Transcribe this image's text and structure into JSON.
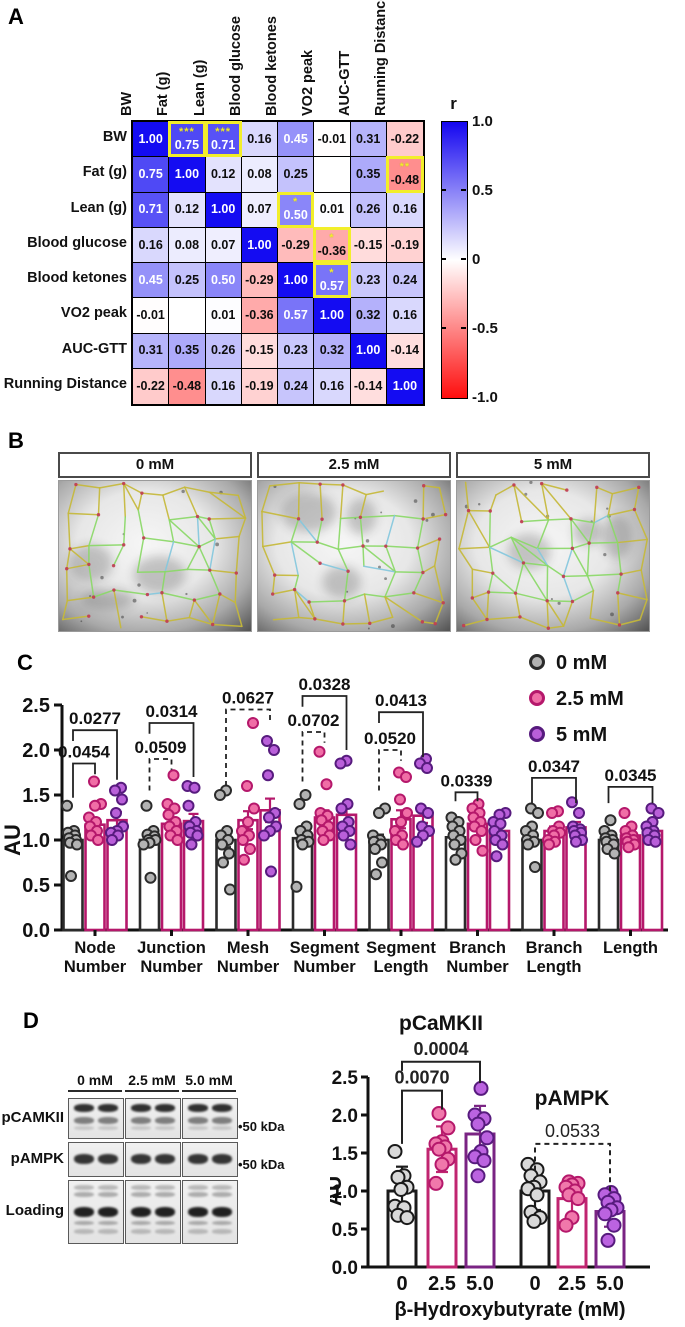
{
  "figure": {
    "panel_labels": {
      "a": "A",
      "b": "B",
      "c": "C",
      "d": "D"
    }
  },
  "panel_b": {
    "image_labels": [
      "0 mM",
      "2.5 mM",
      "5 mM"
    ]
  },
  "panel_d_blot": {
    "col_headers": [
      "0 mM",
      "2.5 mM",
      "5.0 mM"
    ],
    "row_labels": [
      "pCAMKII",
      "pAMPK",
      "Loading"
    ],
    "markers": [
      "•50 kDa",
      "•50 kDa",
      ""
    ]
  },
  "chart_data": [
    {
      "panel": "A",
      "type": "heatmap",
      "colorbar_title": "r",
      "colorbar_ticks": [
        "1.0",
        "0.5",
        "0",
        "-0.5",
        "-1.0"
      ],
      "colorbar_range": [
        -1,
        1
      ],
      "variables": [
        "BW",
        "Fat (g)",
        "Lean (g)",
        "Blood glucose",
        "Blood ketones",
        "VO2 peak",
        "AUC-GTT",
        "Running Distance"
      ],
      "matrix": [
        [
          1.0,
          0.75,
          0.71,
          0.16,
          0.45,
          -0.01,
          0.31,
          -0.22
        ],
        [
          0.75,
          1.0,
          0.12,
          0.08,
          0.25,
          null,
          0.35,
          -0.48
        ],
        [
          0.71,
          0.12,
          1.0,
          0.07,
          0.5,
          0.01,
          0.26,
          0.16
        ],
        [
          0.16,
          0.08,
          0.07,
          1.0,
          -0.29,
          -0.36,
          -0.15,
          -0.19
        ],
        [
          0.45,
          0.25,
          0.5,
          -0.29,
          1.0,
          0.57,
          0.23,
          0.24
        ],
        [
          -0.01,
          null,
          0.01,
          -0.36,
          0.57,
          1.0,
          0.32,
          0.16
        ],
        [
          0.31,
          0.35,
          0.26,
          -0.15,
          0.23,
          0.32,
          1.0,
          -0.14
        ],
        [
          -0.22,
          -0.48,
          0.16,
          -0.19,
          0.24,
          0.16,
          -0.14,
          1.0
        ]
      ],
      "significant_cells": [
        {
          "row": 0,
          "col": 1,
          "stars": "***"
        },
        {
          "row": 0,
          "col": 2,
          "stars": "***"
        },
        {
          "row": 1,
          "col": 7,
          "stars": "**"
        },
        {
          "row": 2,
          "col": 4,
          "stars": "*"
        },
        {
          "row": 3,
          "col": 5,
          "stars": "*"
        },
        {
          "row": 4,
          "col": 5,
          "stars": "*"
        }
      ]
    },
    {
      "panel": "C",
      "type": "bar",
      "ylabel": "AU",
      "ylim": [
        0,
        2.5
      ],
      "yticks": [
        "0.0",
        "0.5",
        "1.0",
        "1.5",
        "2.0",
        "2.5"
      ],
      "categories": [
        [
          "Node",
          "Number"
        ],
        [
          "Junction",
          "Number"
        ],
        [
          "Mesh",
          "Number"
        ],
        [
          "Segment",
          "Number"
        ],
        [
          "Segment",
          "Length"
        ],
        [
          "Branch",
          "Number"
        ],
        [
          "Branch",
          "Length"
        ],
        [
          "Length"
        ]
      ],
      "legend": [
        "0 mM",
        "2.5 mM",
        "5 mM"
      ],
      "colors": {
        "outlines": [
          "#2b2b2b",
          "#b5186b",
          "#b5186b"
        ],
        "dot_fills": [
          "#b3b3b3",
          "#f06ea6",
          "#b95fd9"
        ],
        "dot_strokes": [
          "#2b2b2b",
          "#b5186b",
          "#571b7e"
        ]
      },
      "series": [
        {
          "name": "0 mM",
          "means": [
            1.0,
            1.0,
            1.0,
            1.02,
            1.0,
            1.03,
            1.0,
            1.0
          ],
          "sem": [
            0.05,
            0.05,
            0.08,
            0.05,
            0.06,
            0.05,
            0.04,
            0.03
          ],
          "points": [
            [
              1.38,
              1.1,
              1.08,
              1.05,
              1.02,
              1.0,
              0.97,
              0.95,
              0.6
            ],
            [
              1.38,
              1.1,
              1.06,
              1.04,
              1.0,
              1.0,
              0.97,
              0.95,
              0.58
            ],
            [
              1.55,
              1.5,
              1.1,
              1.05,
              1.0,
              0.95,
              0.85,
              0.75,
              0.45
            ],
            [
              1.5,
              1.4,
              1.15,
              1.1,
              1.05,
              1.0,
              0.98,
              0.95,
              0.48
            ],
            [
              1.35,
              1.3,
              1.05,
              1.0,
              0.98,
              0.95,
              0.9,
              0.75,
              0.62
            ],
            [
              1.25,
              1.2,
              1.15,
              1.1,
              1.05,
              1.0,
              0.95,
              0.85,
              0.78
            ],
            [
              1.35,
              1.3,
              1.15,
              1.1,
              1.05,
              1.0,
              0.98,
              0.95,
              0.7
            ],
            [
              1.22,
              1.1,
              1.05,
              1.02,
              1.0,
              0.98,
              0.95,
              0.9,
              0.85
            ]
          ]
        },
        {
          "name": "2.5 mM",
          "means": [
            1.17,
            1.18,
            1.22,
            1.25,
            1.23,
            1.18,
            1.1,
            1.05
          ],
          "sem": [
            0.07,
            0.07,
            0.1,
            0.08,
            0.1,
            0.05,
            0.05,
            0.04
          ],
          "points": [
            [
              1.65,
              1.4,
              1.38,
              1.25,
              1.2,
              1.15,
              1.1,
              1.05,
              1.0
            ],
            [
              1.72,
              1.4,
              1.35,
              1.28,
              1.2,
              1.15,
              1.1,
              1.05,
              1.0
            ],
            [
              2.3,
              1.6,
              1.35,
              1.2,
              1.1,
              1.05,
              1.0,
              0.9,
              0.78
            ],
            [
              1.98,
              1.62,
              1.3,
              1.27,
              1.22,
              1.15,
              1.1,
              1.05,
              1.0
            ],
            [
              1.75,
              1.7,
              1.45,
              1.3,
              1.2,
              1.1,
              1.05,
              1.0,
              0.95
            ],
            [
              1.4,
              1.35,
              1.3,
              1.25,
              1.2,
              1.15,
              1.1,
              1.0,
              0.88
            ],
            [
              1.32,
              1.3,
              1.15,
              1.1,
              1.08,
              1.05,
              1.0,
              0.98,
              0.95
            ],
            [
              1.3,
              1.15,
              1.1,
              1.05,
              1.02,
              1.0,
              0.98,
              0.95,
              0.92
            ]
          ]
        },
        {
          "name": "5 mM",
          "means": [
            1.22,
            1.21,
            1.33,
            1.28,
            1.27,
            1.1,
            1.14,
            1.1
          ],
          "sem": [
            0.09,
            0.08,
            0.13,
            0.08,
            0.08,
            0.05,
            0.06,
            0.04
          ],
          "points": [
            [
              1.58,
              1.55,
              1.45,
              1.3,
              1.15,
              1.1,
              1.08,
              1.05,
              1.0
            ],
            [
              1.6,
              1.58,
              1.38,
              1.2,
              1.15,
              1.1,
              1.08,
              1.05,
              0.95
            ],
            [
              2.1,
              2.0,
              1.72,
              1.3,
              1.25,
              1.15,
              1.1,
              1.05,
              0.65
            ],
            [
              1.88,
              1.85,
              1.4,
              1.35,
              1.2,
              1.15,
              1.1,
              1.05,
              0.95
            ],
            [
              1.9,
              1.85,
              1.8,
              1.35,
              1.3,
              1.15,
              1.1,
              1.05,
              0.98
            ],
            [
              1.3,
              1.28,
              1.2,
              1.18,
              1.1,
              1.05,
              1.0,
              0.95,
              0.82
            ],
            [
              1.42,
              1.3,
              1.15,
              1.12,
              1.1,
              1.08,
              1.05,
              1.0,
              0.98
            ],
            [
              1.35,
              1.3,
              1.2,
              1.15,
              1.1,
              1.08,
              1.05,
              1.0,
              0.98
            ]
          ]
        }
      ],
      "pvalue_brackets": [
        {
          "group": 0,
          "from": 0,
          "to": 1,
          "label": "0.0454",
          "style": "solid",
          "y": 1.85,
          "legL": 0.38,
          "legR": 0.12
        },
        {
          "group": 0,
          "from": 0,
          "to": 2,
          "label": "0.0277",
          "style": "solid",
          "y": 2.22,
          "legL": 0.12,
          "legR": 0.55
        },
        {
          "group": 1,
          "from": 0,
          "to": 1,
          "label": "0.0509",
          "style": "dashed",
          "y": 1.9,
          "legL": 0.35,
          "legR": 0.12
        },
        {
          "group": 1,
          "from": 0,
          "to": 2,
          "label": "0.0314",
          "style": "solid",
          "y": 2.3,
          "legL": 0.12,
          "legR": 0.6
        },
        {
          "group": 2,
          "from": 0,
          "to": 2,
          "label": "0.0627",
          "style": "dashed",
          "y": 2.45,
          "legL": 0.85,
          "legR": 0.12
        },
        {
          "group": 3,
          "from": 0,
          "to": 1,
          "label": "0.0702",
          "style": "dashed",
          "y": 2.2,
          "legL": 0.55,
          "legR": 0.12
        },
        {
          "group": 3,
          "from": 0,
          "to": 2,
          "label": "0.0328",
          "style": "solid",
          "y": 2.6,
          "legL": 0.12,
          "legR": 0.6
        },
        {
          "group": 4,
          "from": 0,
          "to": 1,
          "label": "0.0520",
          "style": "dashed",
          "y": 2.0,
          "legL": 0.45,
          "legR": 0.12
        },
        {
          "group": 4,
          "from": 0,
          "to": 2,
          "label": "0.0413",
          "style": "solid",
          "y": 2.42,
          "legL": 0.12,
          "legR": 0.5
        },
        {
          "group": 5,
          "from": 0,
          "to": 1,
          "label": "0.0339",
          "style": "solid",
          "y": 1.53,
          "legL": 0.1,
          "legR": 0.1
        },
        {
          "group": 6,
          "from": 0,
          "to": 2,
          "label": "0.0347",
          "style": "solid",
          "y": 1.69,
          "legL": 0.28,
          "legR": 0.28
        },
        {
          "group": 7,
          "from": 0,
          "to": 2,
          "label": "0.0345",
          "style": "solid",
          "y": 1.59,
          "legL": 0.18,
          "legR": 0.18
        }
      ]
    },
    {
      "panel": "D",
      "type": "bar",
      "xlabel": "β-Hydroxybutyrate (mM)",
      "ylabel": "AU",
      "ylim": [
        0,
        2.5
      ],
      "yticks": [
        "0.0",
        "0.5",
        "1.0",
        "1.5",
        "2.0",
        "2.5"
      ],
      "colors": {
        "outlines": [
          "#1a1a1a",
          "#c02570",
          "#7a2483"
        ],
        "dot_fills": [
          "#d9d9d9",
          "#f078ab",
          "#bb63e0"
        ],
        "dot_strokes": [
          "#1a1a1a",
          "#b5186b",
          "#571b7e"
        ]
      },
      "groups": [
        {
          "title": "pCaMKII",
          "categories": [
            "0",
            "2.5",
            "5.0"
          ],
          "means": [
            1.0,
            1.55,
            1.75
          ],
          "sem": [
            0.32,
            0.3,
            0.37
          ],
          "points": [
            [
              1.52,
              1.2,
              1.18,
              1.05,
              1.02,
              0.8,
              0.78,
              0.68,
              0.65
            ],
            [
              2.02,
              1.83,
              1.65,
              1.62,
              1.58,
              1.55,
              1.42,
              1.35,
              1.1
            ],
            [
              2.35,
              2.0,
              1.95,
              1.88,
              1.7,
              1.52,
              1.45,
              1.4,
              1.2
            ]
          ],
          "brackets": [
            {
              "from": 0,
              "to": 1,
              "label": "0.0070",
              "style": "solid",
              "y": 2.32,
              "legL": 0.7,
              "legR": 0.25
            },
            {
              "from": 0,
              "to": 2,
              "label": "0.0004",
              "style": "solid",
              "y": 2.7,
              "legL": 0.12,
              "legR": 0.28
            }
          ]
        },
        {
          "title": "pAMPK",
          "categories": [
            "0",
            "2.5",
            "5.0"
          ],
          "means": [
            1.0,
            0.9,
            0.73
          ],
          "sem": [
            0.25,
            0.22,
            0.2
          ],
          "points": [
            [
              1.35,
              1.28,
              1.2,
              1.12,
              1.05,
              1.03,
              0.95,
              0.72,
              0.65,
              0.6
            ],
            [
              1.12,
              1.1,
              1.08,
              1.05,
              1.0,
              0.95,
              0.9,
              0.65,
              0.55
            ],
            [
              0.98,
              0.95,
              0.9,
              0.85,
              0.78,
              0.75,
              0.7,
              0.55,
              0.35
            ]
          ],
          "brackets": [
            {
              "from": 0,
              "to": 2,
              "label": "0.0533",
              "style": "dashed",
              "y": 1.62,
              "legL": 0.35,
              "legR": 0.62
            }
          ]
        }
      ]
    }
  ]
}
